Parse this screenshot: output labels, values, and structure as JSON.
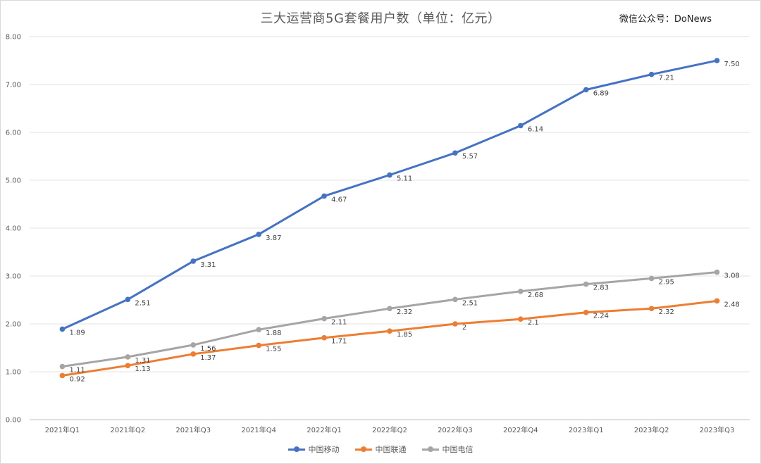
{
  "watermark": "微信公众号：DoNews",
  "chart_data": {
    "type": "line",
    "title": "三大运营商5G套餐用户数（单位：亿元）",
    "xlabel": "",
    "ylabel": "",
    "ylim": [
      0,
      8
    ],
    "yticks": [
      "0.00",
      "1.00",
      "2.00",
      "3.00",
      "4.00",
      "5.00",
      "6.00",
      "7.00",
      "8.00"
    ],
    "grid": true,
    "legend_position": "bottom",
    "categories": [
      "2021年Q1",
      "2021年Q2",
      "2021年Q3",
      "2021年Q4",
      "2022年Q1",
      "2022年Q2",
      "2022年Q3",
      "2022年Q4",
      "2023年Q1",
      "2023年Q2",
      "2023年Q3"
    ],
    "series": [
      {
        "name": "中国移动",
        "color": "#4472c4",
        "values": [
          1.89,
          2.51,
          3.31,
          3.87,
          4.67,
          5.11,
          5.57,
          6.14,
          6.89,
          7.21,
          7.5
        ],
        "labels": [
          "1.89",
          "2.51",
          "3.31",
          "3.87",
          "4.67",
          "5.11",
          "5.57",
          "6.14",
          "6.89",
          "7.21",
          "7.50"
        ]
      },
      {
        "name": "中国联通",
        "color": "#ed7d31",
        "values": [
          0.92,
          1.13,
          1.37,
          1.55,
          1.71,
          1.85,
          2,
          2.1,
          2.24,
          2.32,
          2.48
        ],
        "labels": [
          "0.92",
          "1.13",
          "1.37",
          "1.55",
          "1.71",
          "1.85",
          "2",
          "2.1",
          "2.24",
          "2.32",
          "2.48"
        ]
      },
      {
        "name": "中国电信",
        "color": "#a5a5a5",
        "values": [
          1.11,
          1.31,
          1.56,
          1.88,
          2.11,
          2.32,
          2.51,
          2.68,
          2.83,
          2.95,
          3.08
        ],
        "labels": [
          "1.11",
          "1.31",
          "1.56",
          "1.88",
          "2.11",
          "2.32",
          "2.51",
          "2.68",
          "2.83",
          "2.95",
          "3.08"
        ]
      }
    ]
  }
}
